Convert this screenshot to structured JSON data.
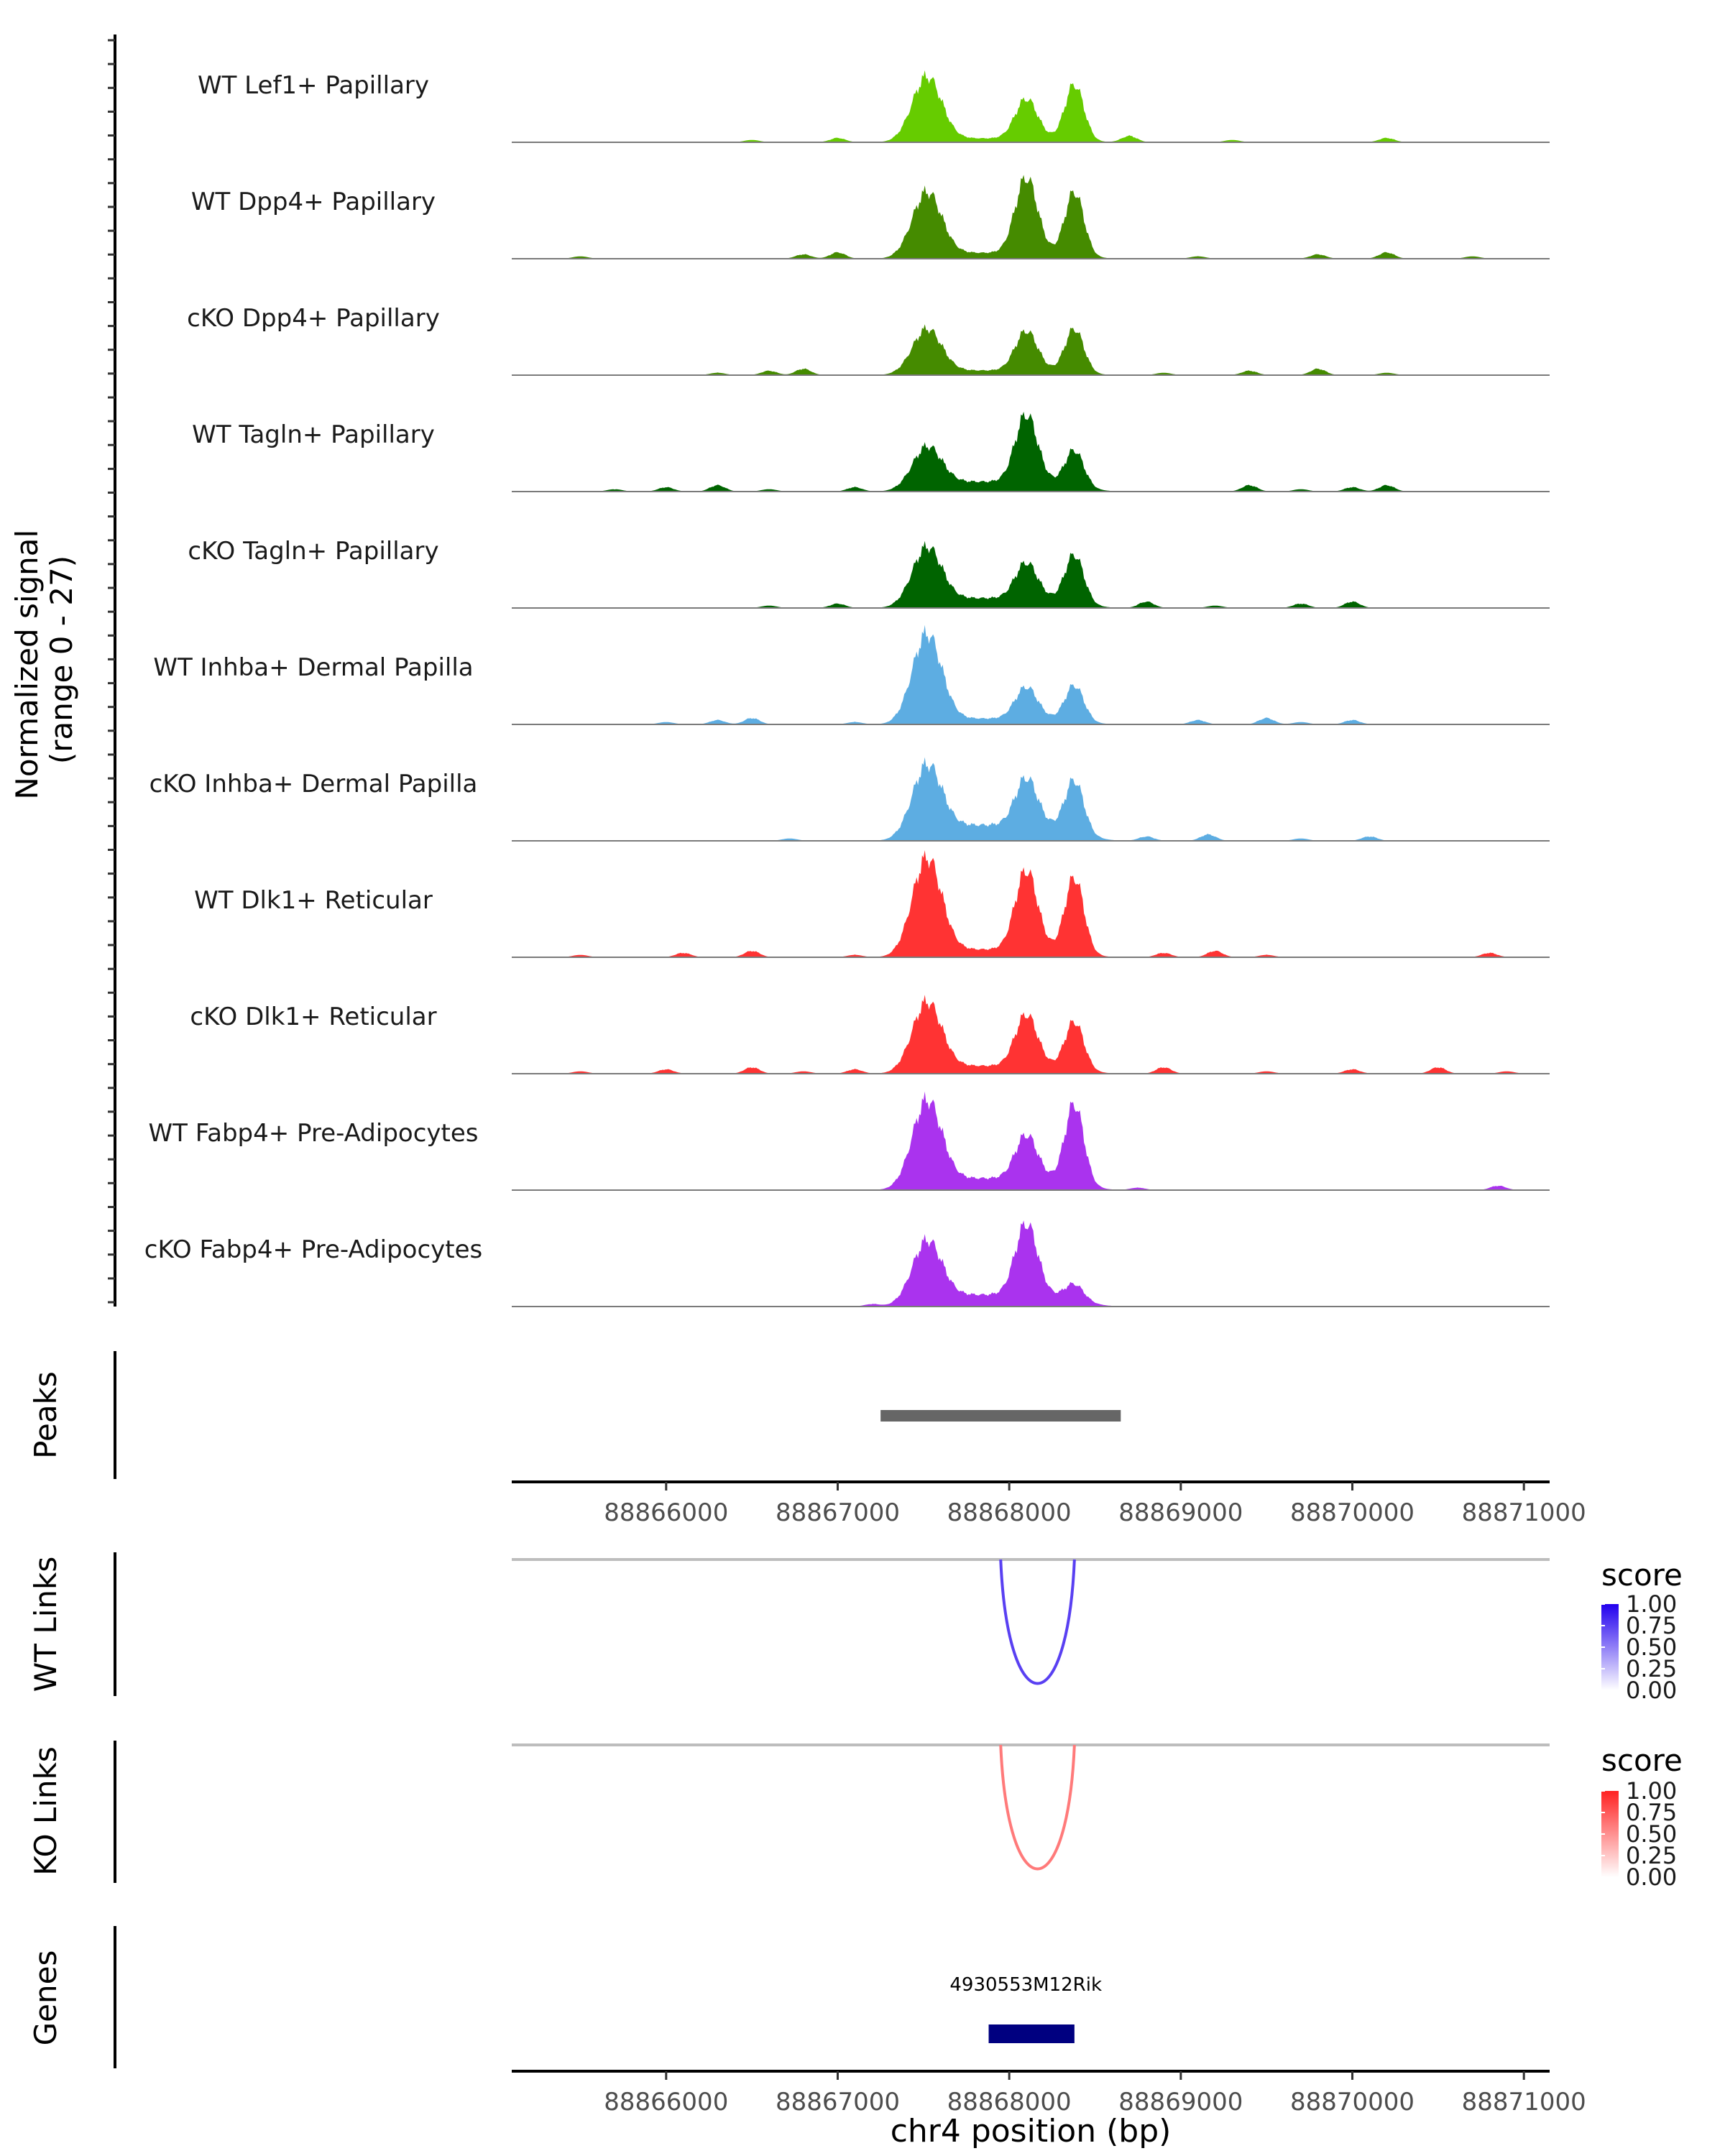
{
  "chart_data": {
    "type": "area",
    "title": "",
    "xlabel": "chr4 position (bp)",
    "x_range": [
      88865100,
      88871150
    ],
    "x_ticks": [
      88866000,
      88867000,
      88868000,
      88869000,
      88870000,
      88871000
    ],
    "x_tick_labels": [
      "88866000",
      "88867000",
      "88868000",
      "88869000",
      "88870000",
      "88871000"
    ],
    "coverage": {
      "ylabel_line1": "Normalized signal",
      "ylabel_line2": "(range 0 - 27)",
      "ylim": [
        0,
        27
      ],
      "peak_centers": [
        88867520,
        88868100,
        88868380
      ],
      "tracks": [
        {
          "name": "WT Lef1+ Papillary",
          "color": "#66cc00",
          "heights": [
            16,
            10,
            14
          ],
          "shoulder": 1.0,
          "noise_sites": [
            88866500,
            88867000,
            88868700,
            88869300,
            88870200
          ]
        },
        {
          "name": "WT Dpp4+ Papillary",
          "color": "#458b00",
          "heights": [
            16,
            19,
            16
          ],
          "shoulder": 1.5,
          "noise_sites": [
            88865500,
            88866800,
            88867000,
            88869100,
            88869800,
            88870200,
            88870700
          ]
        },
        {
          "name": "cKO Dpp4+ Papillary",
          "color": "#458b00",
          "heights": [
            11,
            10,
            11
          ],
          "shoulder": 1.2,
          "noise_sites": [
            88866300,
            88866600,
            88866800,
            88868900,
            88869400,
            88869800,
            88870200
          ]
        },
        {
          "name": "WT Tagln+ Papillary",
          "color": "#006400",
          "heights": [
            10,
            17,
            9
          ],
          "shoulder": 2.5,
          "noise_sites": [
            88865700,
            88866000,
            88866300,
            88866600,
            88867100,
            88869400,
            88869700,
            88870000,
            88870200
          ]
        },
        {
          "name": "cKO Tagln+ Papillary",
          "color": "#006400",
          "heights": [
            14,
            9,
            12
          ],
          "shoulder": 2.5,
          "noise_sites": [
            88866600,
            88867000,
            88868800,
            88869200,
            88869700,
            88870000
          ]
        },
        {
          "name": "WT Inhba+ Dermal Papilla",
          "color": "#5dade2",
          "heights": [
            22,
            8,
            9
          ],
          "shoulder": 1.5,
          "noise_sites": [
            88866000,
            88866300,
            88866500,
            88867100,
            88869100,
            88869500,
            88869700,
            88870000
          ]
        },
        {
          "name": "cKO Inhba+ Dermal Papilla",
          "color": "#5dade2",
          "heights": [
            17,
            12,
            13
          ],
          "shoulder": 4.0,
          "noise_sites": [
            88866720,
            88868800,
            88869160,
            88869700,
            88870100
          ]
        },
        {
          "name": "WT Dlk1+ Reticular",
          "color": "#ff3333",
          "heights": [
            24,
            20,
            19
          ],
          "shoulder": 2.0,
          "noise_sites": [
            88865500,
            88866100,
            88866500,
            88867100,
            88868900,
            88869200,
            88869500,
            88870800
          ]
        },
        {
          "name": "cKO Dlk1+ Reticular",
          "color": "#ff3333",
          "heights": [
            17,
            13,
            12
          ],
          "shoulder": 2.0,
          "noise_sites": [
            88865500,
            88866000,
            88866500,
            88866800,
            88867100,
            88868900,
            88869500,
            88870000,
            88870500,
            88870900
          ]
        },
        {
          "name": "WT Fabp4+ Pre-Adipocytes",
          "color": "#aa33ee",
          "heights": [
            21,
            11,
            20
          ],
          "shoulder": 3.0,
          "noise_sites": [
            88868750,
            88870850
          ]
        },
        {
          "name": "cKO Fabp4+ Pre-Adipocytes",
          "color": "#aa33ee",
          "heights": [
            15,
            18,
            4
          ],
          "shoulder": 3.0,
          "noise_sites": [
            88867200
          ]
        }
      ]
    },
    "peaks": {
      "label": "Peaks",
      "ranges": [
        [
          88867250,
          88868650
        ]
      ],
      "color": "#666666"
    },
    "wt_links": {
      "label": "WT Links",
      "arc": {
        "start": 88867950,
        "end": 88868380,
        "score": 0.75
      },
      "legend_title": "score",
      "legend_ticks": [
        "1.00",
        "0.75",
        "0.50",
        "0.25",
        "0.00"
      ],
      "high_color": "#2200ee",
      "low_color": "#ffffff"
    },
    "ko_links": {
      "label": "KO Links",
      "arc": {
        "start": 88867950,
        "end": 88868380,
        "score": 0.6
      },
      "legend_title": "score",
      "legend_ticks": [
        "1.00",
        "0.75",
        "0.50",
        "0.25",
        "0.00"
      ],
      "high_color": "#ff2222",
      "low_color": "#ffffff"
    },
    "genes": {
      "label": "Genes",
      "items": [
        {
          "name": "4930553M12Rik",
          "start": 88867880,
          "end": 88868380,
          "color": "#000080"
        }
      ]
    }
  }
}
